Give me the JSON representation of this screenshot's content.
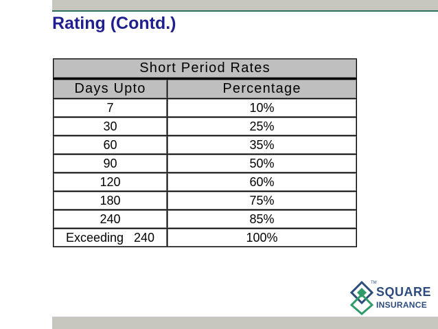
{
  "slide": {
    "title": "Rating (Contd.)"
  },
  "table": {
    "caption": "Short Period Rates",
    "headers": [
      "Days Upto",
      "Percentage"
    ],
    "rows": [
      [
        "7",
        "10%"
      ],
      [
        "30",
        "25%"
      ],
      [
        "60",
        "35%"
      ],
      [
        "90",
        "50%"
      ],
      [
        "120",
        "60%"
      ],
      [
        "180",
        "75%"
      ],
      [
        "240",
        "85%"
      ],
      [
        "Exceeding   240",
        "100%"
      ]
    ]
  },
  "logo": {
    "line1": "SQUARE",
    "line2": "INSURANCE",
    "tm": "TM"
  },
  "colors": {
    "title": "#1f1f8e",
    "header_fill": "#bfbfbf",
    "bars": "#c7c7bf",
    "logo_blue": "#2b4b7e",
    "logo_green": "#2f9a6a"
  }
}
